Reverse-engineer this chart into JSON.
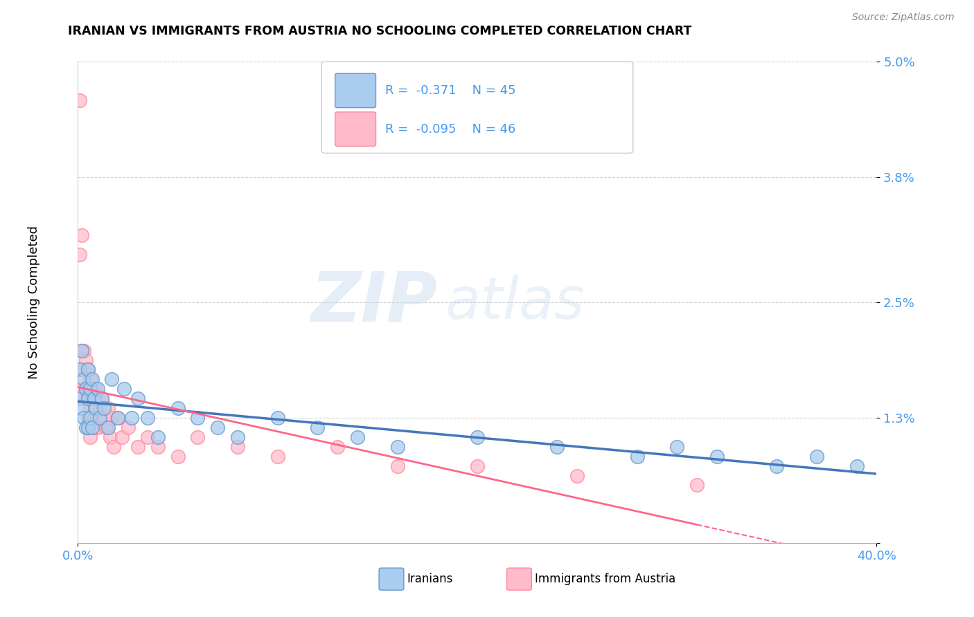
{
  "title": "IRANIAN VS IMMIGRANTS FROM AUSTRIA NO SCHOOLING COMPLETED CORRELATION CHART",
  "source_text": "Source: ZipAtlas.com",
  "ylabel": "No Schooling Completed",
  "xlim": [
    0.0,
    0.4
  ],
  "ylim": [
    0.0,
    0.05
  ],
  "yticks": [
    0.0,
    0.013,
    0.025,
    0.038,
    0.05
  ],
  "ytick_labels": [
    "",
    "1.3%",
    "2.5%",
    "3.8%",
    "5.0%"
  ],
  "xticks": [
    0.0,
    0.4
  ],
  "xtick_labels": [
    "0.0%",
    "40.0%"
  ],
  "legend_blue_r": "-0.371",
  "legend_blue_n": "45",
  "legend_pink_r": "-0.095",
  "legend_pink_n": "46",
  "legend_label1": "Iranians",
  "legend_label2": "Immigrants from Austria",
  "blue_color": "#6699CC",
  "pink_color": "#FF8899",
  "blue_fill": "#AACCEE",
  "pink_fill": "#FFBBCC",
  "trend_blue": "#4477BB",
  "trend_pink": "#FF6688",
  "watermark_zip": "ZIP",
  "watermark_atlas": "atlas",
  "iranians_x": [
    0.001,
    0.001,
    0.002,
    0.002,
    0.003,
    0.003,
    0.004,
    0.004,
    0.005,
    0.005,
    0.005,
    0.006,
    0.006,
    0.007,
    0.007,
    0.008,
    0.009,
    0.01,
    0.011,
    0.012,
    0.013,
    0.015,
    0.017,
    0.02,
    0.023,
    0.027,
    0.03,
    0.035,
    0.04,
    0.05,
    0.06,
    0.07,
    0.08,
    0.1,
    0.12,
    0.14,
    0.16,
    0.2,
    0.24,
    0.28,
    0.3,
    0.32,
    0.35,
    0.37,
    0.39
  ],
  "iranians_y": [
    0.018,
    0.015,
    0.02,
    0.014,
    0.017,
    0.013,
    0.016,
    0.012,
    0.018,
    0.015,
    0.012,
    0.016,
    0.013,
    0.017,
    0.012,
    0.015,
    0.014,
    0.016,
    0.013,
    0.015,
    0.014,
    0.012,
    0.017,
    0.013,
    0.016,
    0.013,
    0.015,
    0.013,
    0.011,
    0.014,
    0.013,
    0.012,
    0.011,
    0.013,
    0.012,
    0.011,
    0.01,
    0.011,
    0.01,
    0.009,
    0.01,
    0.009,
    0.008,
    0.009,
    0.008
  ],
  "austria_x": [
    0.001,
    0.001,
    0.002,
    0.002,
    0.003,
    0.003,
    0.003,
    0.004,
    0.004,
    0.005,
    0.005,
    0.005,
    0.006,
    0.006,
    0.006,
    0.007,
    0.007,
    0.008,
    0.008,
    0.009,
    0.009,
    0.01,
    0.01,
    0.011,
    0.012,
    0.013,
    0.014,
    0.015,
    0.016,
    0.017,
    0.018,
    0.02,
    0.022,
    0.025,
    0.03,
    0.035,
    0.04,
    0.05,
    0.06,
    0.08,
    0.1,
    0.13,
    0.16,
    0.2,
    0.25,
    0.31
  ],
  "austria_y": [
    0.046,
    0.03,
    0.032,
    0.02,
    0.018,
    0.016,
    0.02,
    0.019,
    0.015,
    0.018,
    0.016,
    0.013,
    0.017,
    0.014,
    0.011,
    0.016,
    0.013,
    0.015,
    0.013,
    0.016,
    0.012,
    0.015,
    0.012,
    0.014,
    0.015,
    0.013,
    0.012,
    0.014,
    0.011,
    0.013,
    0.01,
    0.013,
    0.011,
    0.012,
    0.01,
    0.011,
    0.01,
    0.009,
    0.011,
    0.01,
    0.009,
    0.01,
    0.008,
    0.008,
    0.007,
    0.006
  ]
}
